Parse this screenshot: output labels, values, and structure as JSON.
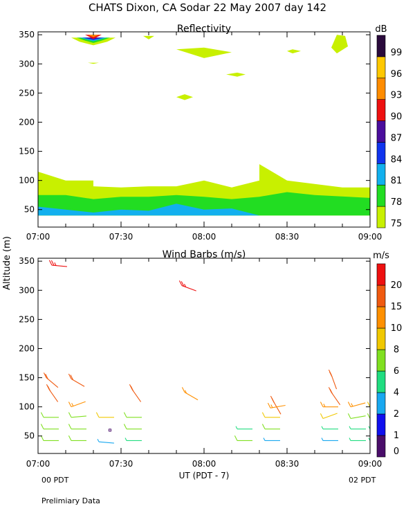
{
  "title": "CHATS Dixon, CA  Sodar  22 May 2007  day 142",
  "ylabel": "Altitude (m)",
  "xlabel": "UT  (PDT - 7)",
  "left_sub": "00 PDT",
  "right_sub": "02 PDT",
  "footer": "Prelimiary Data",
  "chart_data": [
    {
      "type": "heatmap",
      "title": "Reflectivity",
      "colorbar_unit": "dB",
      "xlim": [
        "07:00",
        "09:00"
      ],
      "xticks": [
        "07:00",
        "07:30",
        "08:00",
        "08:30",
        "09:00"
      ],
      "ylim": [
        20,
        355
      ],
      "yticks": [
        50,
        100,
        150,
        200,
        250,
        300,
        350
      ],
      "levels": [
        {
          "label": "75",
          "color": "#c8f000"
        },
        {
          "label": "78",
          "color": "#22dd22"
        },
        {
          "label": "81",
          "color": "#12b0ee"
        },
        {
          "label": "84",
          "color": "#1034ee"
        },
        {
          "label": "87",
          "color": "#4a0d9c"
        },
        {
          "label": "90",
          "color": "#ee1010"
        },
        {
          "label": "93",
          "color": "#ff8c00"
        },
        {
          "label": "96",
          "color": "#ffc800"
        },
        {
          "label": "99",
          "color": "#2a0a3c"
        }
      ],
      "regions": [
        {
          "level": "75",
          "points": [
            [
              "07:00",
              115
            ],
            [
              "07:10",
              100
            ],
            [
              "07:20",
              100
            ],
            [
              "07:20",
              90
            ],
            [
              "07:30",
              88
            ],
            [
              "07:40",
              90
            ],
            [
              "07:50",
              90
            ],
            [
              "08:00",
              100
            ],
            [
              "08:10",
              88
            ],
            [
              "08:20",
              100
            ],
            [
              "08:20",
              128
            ],
            [
              "08:30",
              100
            ],
            [
              "08:50",
              88
            ],
            [
              "09:00",
              88
            ],
            [
              "09:00",
              40
            ],
            [
              "07:00",
              40
            ]
          ]
        },
        {
          "level": "78",
          "points": [
            [
              "07:00",
              75
            ],
            [
              "07:10",
              75
            ],
            [
              "07:20",
              68
            ],
            [
              "07:30",
              72
            ],
            [
              "07:40",
              72
            ],
            [
              "07:50",
              75
            ],
            [
              "08:00",
              72
            ],
            [
              "08:10",
              68
            ],
            [
              "08:20",
              72
            ],
            [
              "08:30",
              80
            ],
            [
              "08:40",
              75
            ],
            [
              "09:00",
              70
            ],
            [
              "09:00",
              40
            ],
            [
              "07:00",
              40
            ]
          ]
        },
        {
          "level": "81",
          "points": [
            [
              "07:00",
              55
            ],
            [
              "07:10",
              50
            ],
            [
              "07:20",
              45
            ],
            [
              "07:30",
              50
            ],
            [
              "07:40",
              48
            ],
            [
              "07:50",
              60
            ],
            [
              "08:00",
              50
            ],
            [
              "08:10",
              52
            ],
            [
              "08:20",
              40
            ],
            [
              "07:00",
              40
            ]
          ]
        },
        {
          "level": "75",
          "points": [
            [
              "07:12",
              345
            ],
            [
              "07:15",
              338
            ],
            [
              "07:20",
              332
            ],
            [
              "07:25",
              338
            ],
            [
              "07:28",
              345
            ]
          ]
        },
        {
          "level": "78",
          "points": [
            [
              "07:14",
              345
            ],
            [
              "07:17",
              340
            ],
            [
              "07:20",
              336
            ],
            [
              "07:23",
              340
            ],
            [
              "07:26",
              345
            ]
          ]
        },
        {
          "level": "81",
          "points": [
            [
              "07:15",
              345
            ],
            [
              "07:20",
              339
            ],
            [
              "07:25",
              345
            ]
          ]
        },
        {
          "level": "84",
          "points": [
            [
              "07:16",
              345
            ],
            [
              "07:20",
              341
            ],
            [
              "07:24",
              345
            ]
          ]
        },
        {
          "level": "87",
          "points": [
            [
              "07:17",
              345
            ],
            [
              "07:20",
              342
            ],
            [
              "07:23",
              345
            ]
          ]
        },
        {
          "level": "90",
          "points": [
            [
              "07:17",
              350
            ],
            [
              "07:23",
              350
            ],
            [
              "07:20",
              343
            ]
          ]
        },
        {
          "level": "93",
          "points": [
            [
              "07:18",
              350
            ],
            [
              "07:22",
              350
            ],
            [
              "07:20",
              346
            ]
          ]
        },
        {
          "level": "75",
          "points": [
            [
              "07:38",
              348
            ],
            [
              "07:40",
              342
            ],
            [
              "07:42",
              348
            ]
          ]
        },
        {
          "level": "75",
          "points": [
            [
              "07:50",
              325
            ],
            [
              "08:00",
              310
            ],
            [
              "08:10",
              320
            ],
            [
              "08:00",
              328
            ]
          ]
        },
        {
          "level": "75",
          "points": [
            [
              "08:08",
              282
            ],
            [
              "08:12",
              278
            ],
            [
              "08:15",
              282
            ],
            [
              "08:12",
              285
            ]
          ]
        },
        {
          "level": "75",
          "points": [
            [
              "07:50",
              243
            ],
            [
              "07:53",
              238
            ],
            [
              "07:56",
              243
            ],
            [
              "07:53",
              248
            ]
          ]
        },
        {
          "level": "75",
          "points": [
            [
              "08:30",
              322
            ],
            [
              "08:32",
              318
            ],
            [
              "08:35",
              322
            ],
            [
              "08:32",
              325
            ]
          ]
        },
        {
          "level": "75",
          "points": [
            [
              "08:48",
              350
            ],
            [
              "08:51",
              348
            ],
            [
              "08:52",
              330
            ],
            [
              "08:48",
              318
            ],
            [
              "08:46",
              328
            ]
          ]
        },
        {
          "level": "75",
          "points": [
            [
              "07:18",
              302
            ],
            [
              "07:20",
              300
            ],
            [
              "07:22",
              302
            ]
          ]
        }
      ]
    },
    {
      "type": "scatter",
      "title": "Wind Barbs (m/s)",
      "colorbar_unit": "m/s",
      "xlim": [
        "07:00",
        "09:00"
      ],
      "xticks": [
        "07:00",
        "07:30",
        "08:00",
        "08:30",
        "09:00"
      ],
      "ylim": [
        20,
        355
      ],
      "yticks": [
        50,
        100,
        150,
        200,
        250,
        300,
        350
      ],
      "levels": [
        {
          "label": "0",
          "color": "#4a0d6a"
        },
        {
          "label": "1",
          "color": "#1010ee"
        },
        {
          "label": "2",
          "color": "#18a8f0"
        },
        {
          "label": "4",
          "color": "#20dd80"
        },
        {
          "label": "6",
          "color": "#80e020"
        },
        {
          "label": "8",
          "color": "#f0c800"
        },
        {
          "label": "10",
          "color": "#ff9000"
        },
        {
          "label": "15",
          "color": "#f05a10"
        },
        {
          "label": "20",
          "color": "#ee1010"
        }
      ],
      "points": [
        {
          "time": "07:05",
          "alt": 343,
          "level": "20",
          "speed": 20,
          "angle": 5
        },
        {
          "time": "07:52",
          "alt": 308,
          "level": "20",
          "speed": 20,
          "angle": 20
        },
        {
          "time": "07:03",
          "alt": 150,
          "level": "15",
          "speed": 15,
          "angle": 40
        },
        {
          "time": "07:04",
          "alt": 130,
          "level": "15",
          "speed": 15,
          "angle": 55
        },
        {
          "time": "07:12",
          "alt": 148,
          "level": "15",
          "speed": 15,
          "angle": 30
        },
        {
          "time": "07:34",
          "alt": 130,
          "level": "15",
          "speed": 15,
          "angle": 55
        },
        {
          "time": "07:53",
          "alt": 125,
          "level": "10",
          "speed": 10,
          "angle": 30
        },
        {
          "time": "08:25",
          "alt": 110,
          "level": "15",
          "speed": 15,
          "angle": 60
        },
        {
          "time": "08:46",
          "alt": 125,
          "level": "15",
          "speed": 15,
          "angle": 55
        },
        {
          "time": "08:46",
          "alt": 155,
          "level": "15",
          "speed": 15,
          "angle": 70
        },
        {
          "time": "07:12",
          "alt": 100,
          "level": "10",
          "speed": 10,
          "angle": -20
        },
        {
          "time": "08:24",
          "alt": 98,
          "level": "10",
          "speed": 10,
          "angle": -10
        },
        {
          "time": "08:43",
          "alt": 100,
          "level": "10",
          "speed": 10,
          "angle": 0
        },
        {
          "time": "08:53",
          "alt": 100,
          "level": "10",
          "speed": 10,
          "angle": -15
        },
        {
          "time": "09:00",
          "alt": 100,
          "level": "8",
          "speed": 8,
          "angle": -25
        },
        {
          "time": "07:02",
          "alt": 82,
          "level": "6",
          "speed": 6,
          "angle": 0
        },
        {
          "time": "07:12",
          "alt": 82,
          "level": "6",
          "speed": 6,
          "angle": -5
        },
        {
          "time": "07:22",
          "alt": 82,
          "level": "8",
          "speed": 8,
          "angle": 0
        },
        {
          "time": "07:32",
          "alt": 82,
          "level": "6",
          "speed": 6,
          "angle": 0
        },
        {
          "time": "08:22",
          "alt": 82,
          "level": "8",
          "speed": 8,
          "angle": 0
        },
        {
          "time": "08:43",
          "alt": 80,
          "level": "8",
          "speed": 8,
          "angle": -20
        },
        {
          "time": "08:53",
          "alt": 80,
          "level": "6",
          "speed": 6,
          "angle": -10
        },
        {
          "time": "09:00",
          "alt": 80,
          "level": "6",
          "speed": 6,
          "angle": 0
        },
        {
          "time": "07:02",
          "alt": 62,
          "level": "6",
          "speed": 6,
          "angle": 0
        },
        {
          "time": "07:12",
          "alt": 62,
          "level": "6",
          "speed": 6,
          "angle": 0
        },
        {
          "time": "07:26",
          "alt": 60,
          "level": "0",
          "speed": 0,
          "angle": 0
        },
        {
          "time": "07:32",
          "alt": 62,
          "level": "6",
          "speed": 6,
          "angle": 0
        },
        {
          "time": "08:12",
          "alt": 62,
          "level": "4",
          "speed": 4,
          "angle": 0
        },
        {
          "time": "08:22",
          "alt": 62,
          "level": "6",
          "speed": 6,
          "angle": 0
        },
        {
          "time": "08:43",
          "alt": 62,
          "level": "4",
          "speed": 4,
          "angle": 0
        },
        {
          "time": "08:53",
          "alt": 62,
          "level": "4",
          "speed": 4,
          "angle": 0
        },
        {
          "time": "09:00",
          "alt": 62,
          "level": "4",
          "speed": 4,
          "angle": 0
        },
        {
          "time": "07:02",
          "alt": 42,
          "level": "6",
          "speed": 6,
          "angle": 0
        },
        {
          "time": "07:12",
          "alt": 42,
          "level": "6",
          "speed": 6,
          "angle": 0
        },
        {
          "time": "07:22",
          "alt": 40,
          "level": "2",
          "speed": 2,
          "angle": 5
        },
        {
          "time": "07:32",
          "alt": 42,
          "level": "4",
          "speed": 4,
          "angle": 0
        },
        {
          "time": "08:12",
          "alt": 42,
          "level": "6",
          "speed": 6,
          "angle": 0
        },
        {
          "time": "08:22",
          "alt": 42,
          "level": "2",
          "speed": 2,
          "angle": 0
        },
        {
          "time": "08:43",
          "alt": 42,
          "level": "2",
          "speed": 2,
          "angle": 0
        },
        {
          "time": "08:53",
          "alt": 42,
          "level": "4",
          "speed": 4,
          "angle": 0
        },
        {
          "time": "09:00",
          "alt": 42,
          "level": "4",
          "speed": 4,
          "angle": 0
        }
      ]
    }
  ]
}
